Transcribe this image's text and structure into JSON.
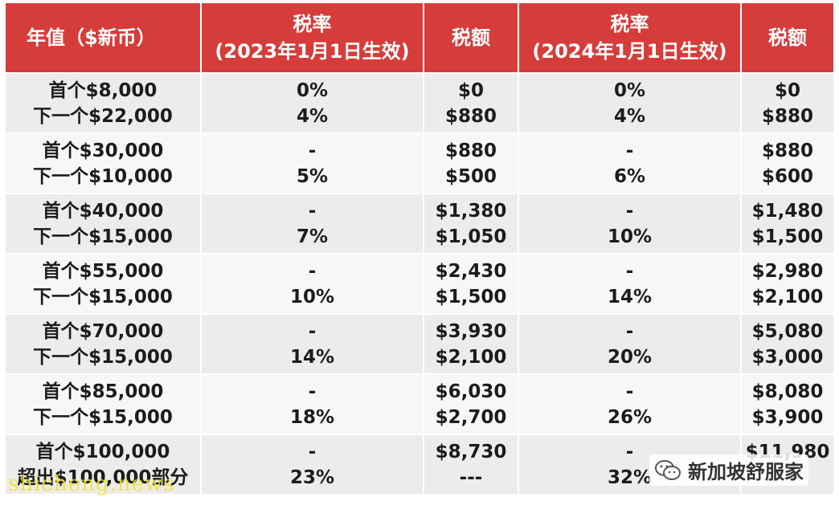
{
  "headers": {
    "col0": "年值（$新币）",
    "col1_line1": "税率",
    "col1_line2": "(2023年1月1日生效)",
    "col2": "税额",
    "col3_line1": "税率",
    "col3_line2": "(2024年1月1日生效)",
    "col4": "税额"
  },
  "rows": [
    {
      "income": [
        "首个$8,000",
        "下一个$22,000"
      ],
      "rate2023": [
        "0%",
        "4%"
      ],
      "tax2023": [
        "$0",
        "$880"
      ],
      "rate2024": [
        "0%",
        "4%"
      ],
      "tax2024": [
        "$0",
        "$880"
      ]
    },
    {
      "income": [
        "首个$30,000",
        "下一个$10,000"
      ],
      "rate2023": [
        "-",
        "5%"
      ],
      "tax2023": [
        "$880",
        "$500"
      ],
      "rate2024": [
        "-",
        "6%"
      ],
      "tax2024": [
        "$880",
        "$600"
      ]
    },
    {
      "income": [
        "首个$40,000",
        "下一个$15,000"
      ],
      "rate2023": [
        "-",
        "7%"
      ],
      "tax2023": [
        "$1,380",
        "$1,050"
      ],
      "rate2024": [
        "-",
        "10%"
      ],
      "tax2024": [
        "$1,480",
        "$1,500"
      ]
    },
    {
      "income": [
        "首个$55,000",
        "下一个$15,000"
      ],
      "rate2023": [
        "-",
        "10%"
      ],
      "tax2023": [
        "$2,430",
        "$1,500"
      ],
      "rate2024": [
        "-",
        "14%"
      ],
      "tax2024": [
        "$2,980",
        "$2,100"
      ]
    },
    {
      "income": [
        "首个$70,000",
        "下一个$15,000"
      ],
      "rate2023": [
        "-",
        "14%"
      ],
      "tax2023": [
        "$3,930",
        "$2,100"
      ],
      "rate2024": [
        "-",
        "20%"
      ],
      "tax2024": [
        "$5,080",
        "$3,000"
      ]
    },
    {
      "income": [
        "首个$85,000",
        "下一个$15,000"
      ],
      "rate2023": [
        "-",
        "18%"
      ],
      "tax2023": [
        "$6,030",
        "$2,700"
      ],
      "rate2024": [
        "-",
        "26%"
      ],
      "tax2024": [
        "$8,080",
        "$3,900"
      ]
    },
    {
      "income": [
        "首个$100,000",
        "超出$100,000部分"
      ],
      "rate2023": [
        "-",
        "23%"
      ],
      "tax2023": [
        "$8,730",
        "---"
      ],
      "rate2024": [
        "-",
        "32%"
      ],
      "tax2024": [
        "$11,980",
        "---"
      ]
    }
  ],
  "watermark": "shicheng.news",
  "wechat_label": "新加坡舒服家",
  "colors": {
    "header_bg": "#d63d3a",
    "row_shade": "#ececec",
    "row_plain": "#f7f7f7"
  }
}
